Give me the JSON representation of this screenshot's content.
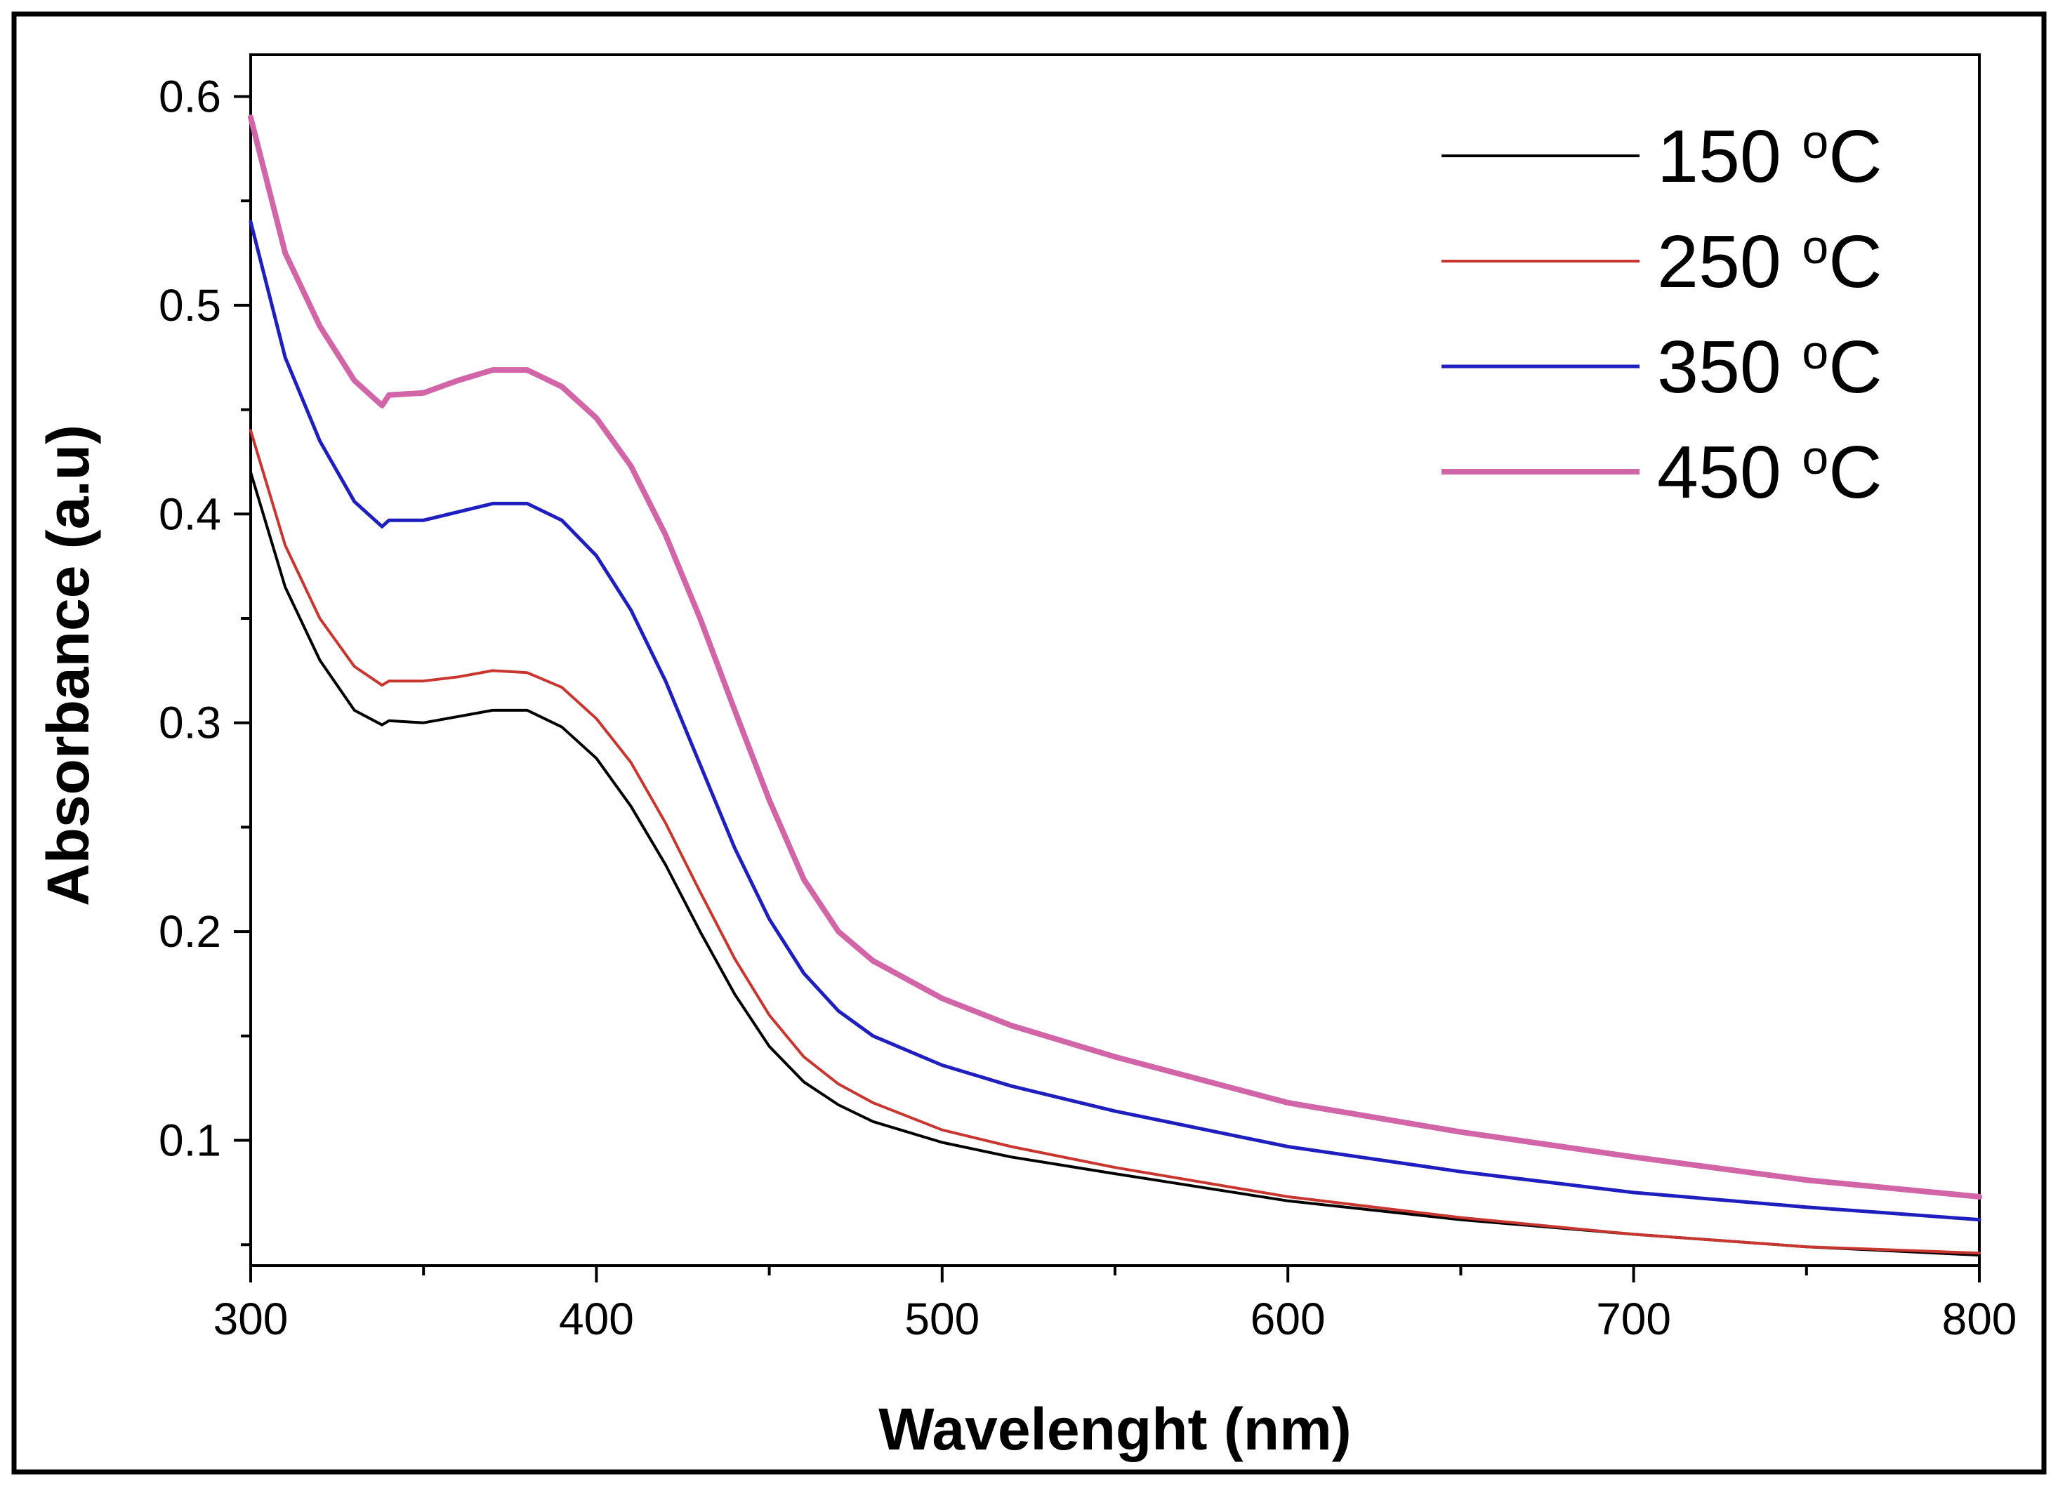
{
  "chart_data": {
    "type": "line",
    "title": "",
    "xlabel": "Wavelenght (nm)",
    "ylabel": "Absorbance (a.u)",
    "xlim": [
      300,
      800
    ],
    "ylim": [
      0.04,
      0.62
    ],
    "xticks": [
      300,
      400,
      500,
      600,
      700,
      800
    ],
    "xtick_labels": [
      "300",
      "400",
      "500",
      "600",
      "700",
      "800"
    ],
    "yticks": [
      0.1,
      0.2,
      0.3,
      0.4,
      0.5,
      0.6
    ],
    "ytick_labels": [
      "0.1",
      "0.2",
      "0.3",
      "0.4",
      "0.5",
      "0.6"
    ],
    "grid": false,
    "legend_position": "top-right",
    "x": [
      300,
      310,
      320,
      330,
      338,
      340,
      350,
      360,
      370,
      380,
      390,
      400,
      410,
      420,
      430,
      440,
      450,
      460,
      470,
      480,
      500,
      520,
      550,
      600,
      650,
      700,
      750,
      800
    ],
    "series": [
      {
        "name": "150 °C",
        "color": "#000000",
        "values": [
          0.42,
          0.365,
          0.33,
          0.306,
          0.299,
          0.301,
          0.3,
          0.303,
          0.306,
          0.306,
          0.298,
          0.283,
          0.26,
          0.232,
          0.2,
          0.17,
          0.145,
          0.128,
          0.117,
          0.109,
          0.099,
          0.092,
          0.084,
          0.071,
          0.062,
          0.055,
          0.049,
          0.045
        ]
      },
      {
        "name": "250 °C",
        "color": "#c8362f",
        "values": [
          0.44,
          0.385,
          0.35,
          0.327,
          0.318,
          0.32,
          0.32,
          0.322,
          0.325,
          0.324,
          0.317,
          0.302,
          0.281,
          0.252,
          0.219,
          0.187,
          0.16,
          0.14,
          0.127,
          0.118,
          0.105,
          0.097,
          0.087,
          0.073,
          0.063,
          0.055,
          0.049,
          0.046
        ]
      },
      {
        "name": "350 °C",
        "color": "#1f1fbf",
        "values": [
          0.54,
          0.475,
          0.435,
          0.406,
          0.394,
          0.397,
          0.397,
          0.401,
          0.405,
          0.405,
          0.397,
          0.38,
          0.354,
          0.32,
          0.28,
          0.24,
          0.206,
          0.18,
          0.162,
          0.15,
          0.136,
          0.126,
          0.114,
          0.097,
          0.085,
          0.075,
          0.068,
          0.062
        ]
      },
      {
        "name": "450 °C",
        "color": "#d265a8",
        "values": [
          0.59,
          0.525,
          0.49,
          0.464,
          0.452,
          0.457,
          0.458,
          0.464,
          0.469,
          0.469,
          0.461,
          0.446,
          0.423,
          0.39,
          0.35,
          0.306,
          0.263,
          0.225,
          0.2,
          0.186,
          0.168,
          0.155,
          0.14,
          0.118,
          0.104,
          0.092,
          0.081,
          0.073
        ]
      }
    ]
  }
}
